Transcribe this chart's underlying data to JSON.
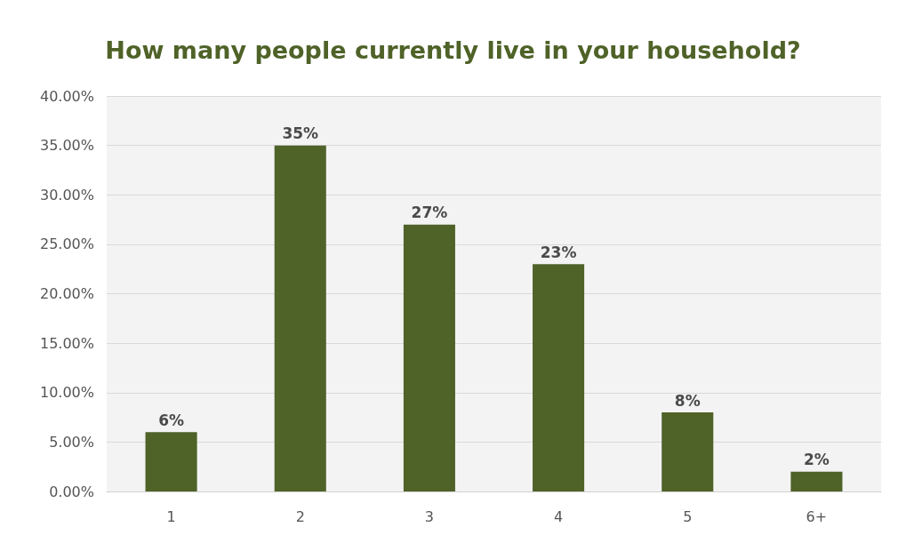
{
  "chart_data": {
    "type": "bar",
    "title": "How many people currently live in your household?",
    "categories": [
      "1",
      "2",
      "3",
      "4",
      "5",
      "6+"
    ],
    "values": [
      6,
      35,
      27,
      23,
      8,
      2
    ],
    "value_labels": [
      "6%",
      "35%",
      "27%",
      "23%",
      "8%",
      "2%"
    ],
    "color": "#4f6228",
    "ylim": [
      0,
      40
    ],
    "yticks": [
      {
        "value": 0,
        "label": "0.00%"
      },
      {
        "value": 5,
        "label": "5.00%"
      },
      {
        "value": 10,
        "label": "10.00%"
      },
      {
        "value": 15,
        "label": "15.00%"
      },
      {
        "value": 20,
        "label": "20.00%"
      },
      {
        "value": 25,
        "label": "25.00%"
      },
      {
        "value": 30,
        "label": "30.00%"
      },
      {
        "value": 35,
        "label": "35.00%"
      },
      {
        "value": 40,
        "label": "40.00%"
      }
    ],
    "grid": "y"
  }
}
